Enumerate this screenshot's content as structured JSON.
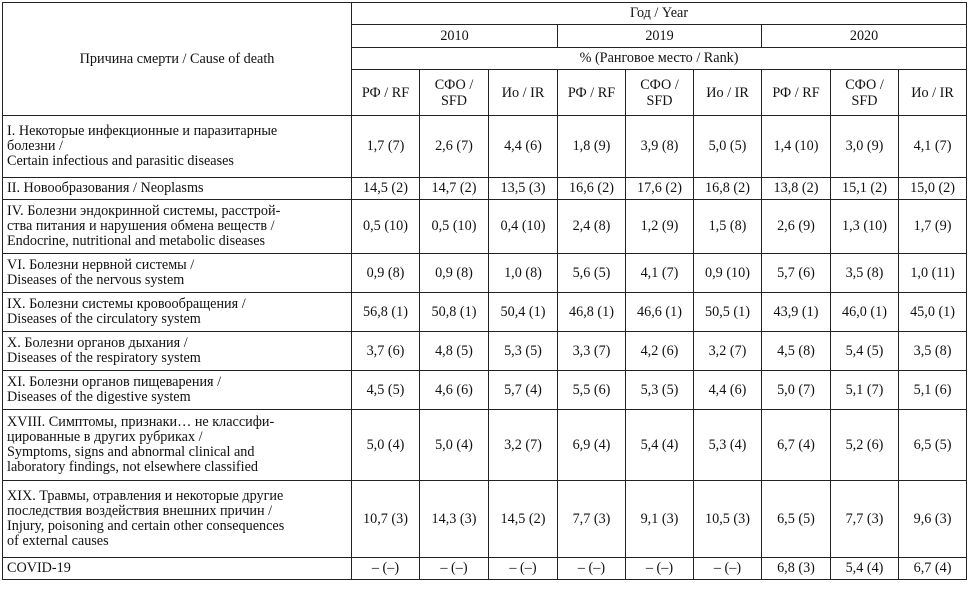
{
  "header": {
    "cause_label": "Причина смерти / Cause of death",
    "year_label": "Год / Year",
    "years": [
      "2010",
      "2019",
      "2020"
    ],
    "unit_label": "% (Ранговое место / Rank)",
    "regions": [
      [
        "РФ / RF"
      ],
      [
        "СФО /",
        "SFD"
      ],
      [
        "Ио / IR"
      ]
    ]
  },
  "rows": [
    {
      "cause": [
        "I. Некоторые инфекционные и паразитарные",
        "болезни /",
        "Certain infectious and parasitic diseases"
      ],
      "values": [
        "1,7 (7)",
        "2,6 (7)",
        "4,4 (6)",
        "1,8 (9)",
        "3,9 (8)",
        "5,0 (5)",
        "1,4 (10)",
        "3,0 (9)",
        "4,1 (7)"
      ]
    },
    {
      "cause": [
        "II. Новообразования / Neoplasms"
      ],
      "values": [
        "14,5 (2)",
        "14,7 (2)",
        "13,5 (3)",
        "16,6 (2)",
        "17,6 (2)",
        "16,8 (2)",
        "13,8 (2)",
        "15,1 (2)",
        "15,0 (2)"
      ]
    },
    {
      "cause": [
        "IV. Болезни эндокринной системы, расстрой-",
        "ства питания и нарушения обмена веществ /",
        "Endocrine, nutritional and metabolic diseases"
      ],
      "values": [
        "0,5 (10)",
        "0,5 (10)",
        "0,4 (10)",
        "2,4 (8)",
        "1,2 (9)",
        "1,5 (8)",
        "2,6 (9)",
        "1,3 (10)",
        "1,7 (9)"
      ]
    },
    {
      "cause": [
        "VI. Болезни нервной системы /",
        "Diseases of the nervous system"
      ],
      "values": [
        "0,9 (8)",
        "0,9 (8)",
        "1,0 (8)",
        "5,6 (5)",
        "4,1 (7)",
        "0,9 (10)",
        "5,7 (6)",
        "3,5 (8)",
        "1,0 (11)"
      ]
    },
    {
      "cause": [
        "IX. Болезни системы кровообращения /",
        "Diseases of the circulatory system"
      ],
      "values": [
        "56,8 (1)",
        "50,8 (1)",
        "50,4 (1)",
        "46,8 (1)",
        "46,6 (1)",
        "50,5 (1)",
        "43,9 (1)",
        "46,0 (1)",
        "45,0 (1)"
      ]
    },
    {
      "cause": [
        "X. Болезни органов дыхания /",
        "Diseases of the respiratory system"
      ],
      "values": [
        "3,7 (6)",
        "4,8 (5)",
        "5,3 (5)",
        "3,3 (7)",
        "4,2 (6)",
        "3,2 (7)",
        "4,5 (8)",
        "5,4 (5)",
        "3,5 (8)"
      ]
    },
    {
      "cause": [
        "XI. Болезни органов пищеварения /",
        "Diseases of the digestive system"
      ],
      "values": [
        "4,5 (5)",
        "4,6 (6)",
        "5,7 (4)",
        "5,5 (6)",
        "5,3 (5)",
        "4,4 (6)",
        "5,0 (7)",
        "5,1 (7)",
        "5,1 (6)"
      ]
    },
    {
      "cause": [
        "XVIII. Симптомы, признаки… не классифи-",
        "цированные в других рубриках /",
        "Symptoms, signs and abnormal clinical and",
        "laboratory findings, not elsewhere classified"
      ],
      "values": [
        "5,0 (4)",
        "5,0 (4)",
        "3,2 (7)",
        "6,9 (4)",
        "5,4 (4)",
        "5,3 (4)",
        "6,7 (4)",
        "5,2 (6)",
        "6,5 (5)"
      ]
    },
    {
      "cause": [
        "XIX. Травмы, отравления и некоторые другие",
        "последствия воздействия внешних причин /",
        "Injury, poisoning and certain other consequences",
        "of external causes"
      ],
      "values": [
        "10,7 (3)",
        "14,3 (3)",
        "14,5 (2)",
        "7,7 (3)",
        "9,1 (3)",
        "10,5 (3)",
        "6,5 (5)",
        "7,7 (3)",
        "9,6 (3)"
      ]
    },
    {
      "cause": [
        "COVID-19"
      ],
      "values": [
        "– (–)",
        "– (–)",
        "– (–)",
        "– (–)",
        "– (–)",
        "– (–)",
        "6,8 (3)",
        "5,4 (4)",
        "6,7 (4)"
      ]
    }
  ]
}
